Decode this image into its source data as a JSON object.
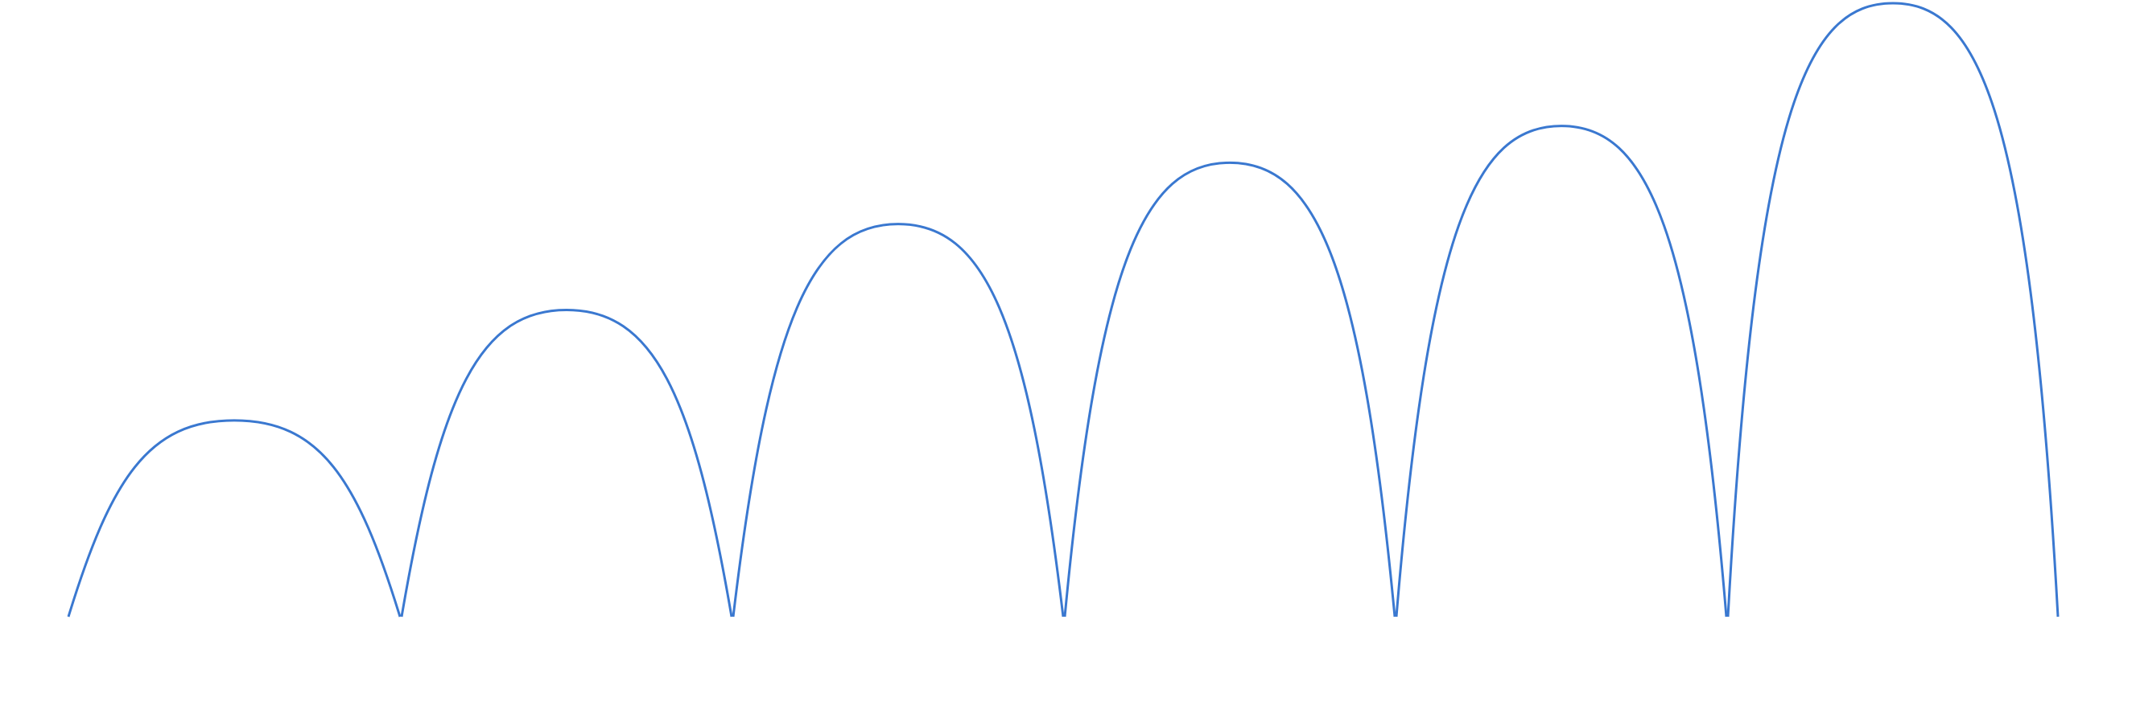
{
  "figure": {
    "type": "arcs",
    "line_color": "#3a78d0",
    "arch_count": 6,
    "relative_heights": [
      0.32,
      0.5,
      0.64,
      0.74,
      0.8,
      1.0
    ]
  }
}
